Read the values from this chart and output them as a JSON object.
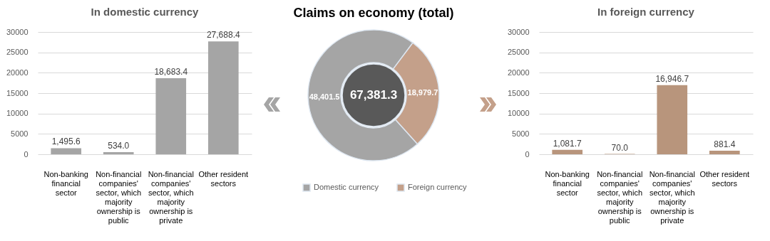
{
  "chart_data": [
    {
      "type": "bar",
      "title": "In domestic currency",
      "categories": [
        "Non-banking financial sector",
        "Non-financial companies' sector, which majority ownership is public",
        "Non-financial companies' sector, which majority ownership is private",
        "Other resident sectors"
      ],
      "values": [
        1495.6,
        534.0,
        18683.4,
        27688.4
      ],
      "value_labels": [
        "1,495.6",
        "534.0",
        "18,683.4",
        "27,688.4"
      ],
      "color": "#a5a5a5",
      "ylim": [
        0,
        30000
      ],
      "yticks": [
        0,
        5000,
        10000,
        15000,
        20000,
        25000,
        30000
      ],
      "grid": "y"
    },
    {
      "type": "donut",
      "title": "Claims on economy (total)",
      "categories": [
        "Domestic currency",
        "Foreign currency"
      ],
      "values": [
        48401.5,
        18979.7
      ],
      "value_labels": [
        "48,401.5",
        "18,979.7"
      ],
      "colors": [
        "#a5a5a5",
        "#c4a08a"
      ],
      "legend": "bottom",
      "annotations": [
        "67,381.3"
      ]
    },
    {
      "type": "bar",
      "title": "In foreign currency",
      "categories": [
        "Non-banking financial sector",
        "Non-financial companies' sector, which majority ownership is public",
        "Non-financial companies' sector, which majority ownership is private",
        "Other resident sectors"
      ],
      "values": [
        1081.7,
        70.0,
        16946.7,
        881.4
      ],
      "value_labels": [
        "1,081.7",
        "70.0",
        "16,946.7",
        "881.4"
      ],
      "color": "#b8957c",
      "ylim": [
        0,
        30000
      ],
      "yticks": [
        0,
        5000,
        10000,
        15000,
        20000,
        25000,
        30000
      ],
      "grid": "y"
    }
  ]
}
